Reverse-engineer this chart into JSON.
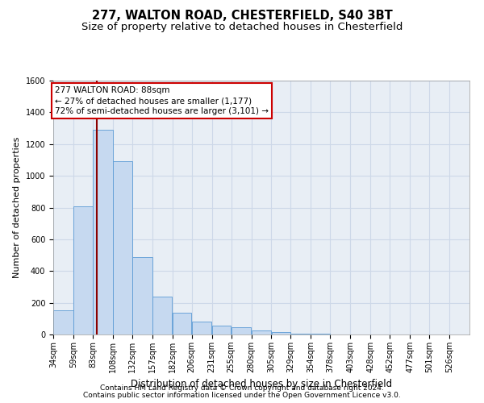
{
  "title1": "277, WALTON ROAD, CHESTERFIELD, S40 3BT",
  "title2": "Size of property relative to detached houses in Chesterfield",
  "xlabel": "Distribution of detached houses by size in Chesterfield",
  "ylabel": "Number of detached properties",
  "footnote1": "Contains HM Land Registry data © Crown copyright and database right 2024.",
  "footnote2": "Contains public sector information licensed under the Open Government Licence v3.0.",
  "bin_labels": [
    "34sqm",
    "59sqm",
    "83sqm",
    "108sqm",
    "132sqm",
    "157sqm",
    "182sqm",
    "206sqm",
    "231sqm",
    "255sqm",
    "280sqm",
    "305sqm",
    "329sqm",
    "354sqm",
    "378sqm",
    "403sqm",
    "428sqm",
    "452sqm",
    "477sqm",
    "501sqm",
    "526sqm"
  ],
  "bar_values": [
    150,
    810,
    1290,
    1090,
    490,
    240,
    135,
    80,
    55,
    45,
    25,
    15,
    5,
    3,
    2,
    1,
    1,
    1,
    0,
    0,
    1
  ],
  "bin_edges": [
    34,
    59,
    83,
    108,
    132,
    157,
    182,
    206,
    231,
    255,
    280,
    305,
    329,
    354,
    378,
    403,
    428,
    452,
    477,
    501,
    526,
    551
  ],
  "bar_color": "#c6d9f0",
  "bar_edge_color": "#5b9bd5",
  "property_size": 88,
  "vline_color": "#8b0000",
  "annotation_text1": "277 WALTON ROAD: 88sqm",
  "annotation_text2": "← 27% of detached houses are smaller (1,177)",
  "annotation_text3": "72% of semi-detached houses are larger (3,101) →",
  "annotation_box_facecolor": "#ffffff",
  "annotation_box_edgecolor": "#cc0000",
  "ylim": [
    0,
    1600
  ],
  "yticks": [
    0,
    200,
    400,
    600,
    800,
    1000,
    1200,
    1400,
    1600
  ],
  "grid_color": "#cdd8e8",
  "bg_color": "#e8eef5",
  "title1_fontsize": 10.5,
  "title2_fontsize": 9.5,
  "xlabel_fontsize": 8.5,
  "ylabel_fontsize": 8,
  "tick_fontsize": 7,
  "annotation_fontsize": 7.5,
  "footnote_fontsize": 6.5
}
